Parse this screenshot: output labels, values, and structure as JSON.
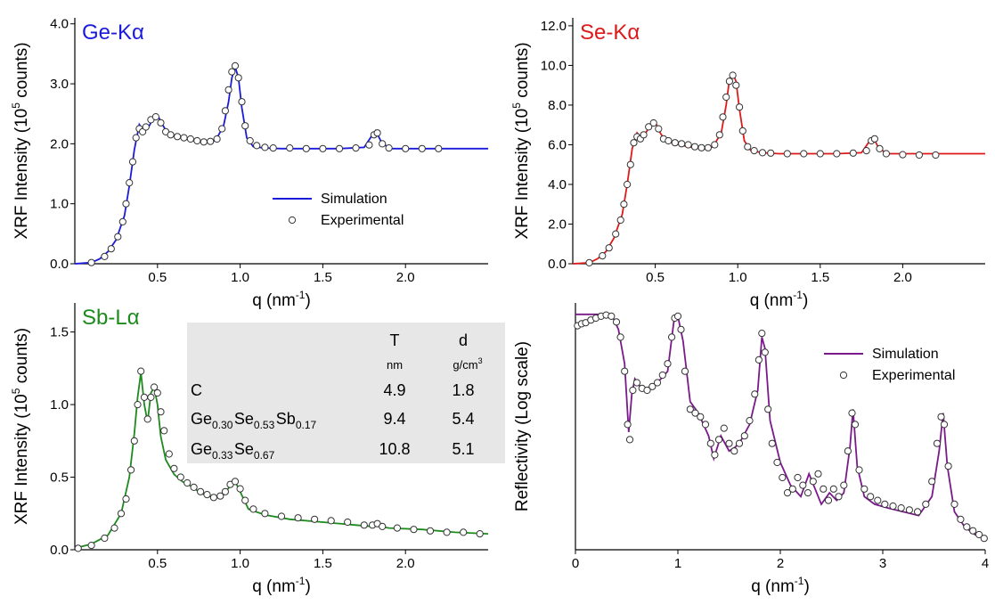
{
  "chart_data": [
    {
      "type": "line",
      "title": "Ge-Kα",
      "title_color": "#1a1adb",
      "xlabel": "q (nm",
      "xlabel_sup": "-1",
      "xlabel_end": ")",
      "ylabel": "XRF Intensity (10",
      "ylabel_sup": "5",
      "ylabel_end": " counts)",
      "xlim": [
        0,
        2.5
      ],
      "ylim": [
        0,
        4.1
      ],
      "xticks": [
        "0.5",
        "1.0",
        "1.5",
        "2.0"
      ],
      "xtick_values": [
        0.5,
        1.0,
        1.5,
        2.0
      ],
      "yticks": [
        "0.0",
        "1.0",
        "2.0",
        "3.0",
        "4.0"
      ],
      "ytick_values": [
        0,
        1,
        2,
        3,
        4
      ],
      "legend": {
        "simulation": "Simulation",
        "experimental": "Experimental",
        "position": "bottom-right"
      },
      "series": [
        {
          "name": "Simulation",
          "color": "#1a1adb",
          "x": [
            0,
            0.1,
            0.15,
            0.2,
            0.25,
            0.3,
            0.33,
            0.36,
            0.39,
            0.42,
            0.45,
            0.48,
            0.5,
            0.53,
            0.56,
            0.6,
            0.65,
            0.7,
            0.75,
            0.8,
            0.85,
            0.9,
            0.93,
            0.95,
            0.97,
            0.99,
            1.01,
            1.04,
            1.08,
            1.15,
            1.25,
            1.4,
            1.6,
            1.75,
            1.8,
            1.82,
            1.85,
            1.9,
            2.0,
            2.2,
            2.5
          ],
          "y": [
            0,
            0.02,
            0.08,
            0.2,
            0.4,
            0.8,
            1.3,
            1.9,
            2.32,
            2.2,
            2.3,
            2.45,
            2.48,
            2.32,
            2.18,
            2.14,
            2.1,
            2.06,
            2.04,
            2.03,
            2.05,
            2.3,
            2.7,
            3.1,
            3.28,
            3.1,
            2.6,
            2.1,
            1.95,
            1.93,
            1.92,
            1.92,
            1.92,
            1.94,
            2.15,
            2.22,
            2.05,
            1.92,
            1.92,
            1.92,
            1.92
          ]
        },
        {
          "name": "Experimental",
          "x": [
            0.1,
            0.18,
            0.22,
            0.26,
            0.29,
            0.31,
            0.33,
            0.35,
            0.37,
            0.39,
            0.41,
            0.43,
            0.46,
            0.49,
            0.52,
            0.55,
            0.58,
            0.62,
            0.66,
            0.7,
            0.74,
            0.78,
            0.82,
            0.86,
            0.89,
            0.91,
            0.93,
            0.95,
            0.97,
            0.99,
            1.01,
            1.03,
            1.06,
            1.1,
            1.15,
            1.2,
            1.3,
            1.4,
            1.5,
            1.6,
            1.7,
            1.78,
            1.81,
            1.83,
            1.86,
            1.9,
            2.0,
            2.1,
            2.2
          ],
          "y": [
            0.02,
            0.12,
            0.25,
            0.45,
            0.7,
            1.0,
            1.35,
            1.7,
            2.1,
            2.25,
            2.2,
            2.28,
            2.4,
            2.45,
            2.35,
            2.2,
            2.15,
            2.12,
            2.1,
            2.08,
            2.05,
            2.03,
            2.04,
            2.08,
            2.25,
            2.55,
            2.9,
            3.2,
            3.3,
            3.1,
            2.7,
            2.3,
            2.05,
            1.97,
            1.94,
            1.93,
            1.93,
            1.92,
            1.92,
            1.92,
            1.93,
            1.98,
            2.15,
            2.18,
            2.0,
            1.93,
            1.92,
            1.92,
            1.92
          ]
        }
      ]
    },
    {
      "type": "line",
      "title": "Se-Kα",
      "title_color": "#dd1a1a",
      "xlabel": "q (nm",
      "xlabel_sup": "-1",
      "xlabel_end": ")",
      "ylabel": "XRF Intensity (10",
      "ylabel_sup": "5",
      "ylabel_end": " counts)",
      "xlim": [
        0,
        2.5
      ],
      "ylim": [
        0,
        12.4
      ],
      "xticks": [
        "0.5",
        "1.0",
        "1.5",
        "2.0"
      ],
      "xtick_values": [
        0.5,
        1.0,
        1.5,
        2.0
      ],
      "yticks": [
        "0.0",
        "2.0",
        "4.0",
        "6.0",
        "8.0",
        "10.0",
        "12.0"
      ],
      "ytick_values": [
        0,
        2,
        4,
        6,
        8,
        10,
        12
      ],
      "series": [
        {
          "name": "Simulation",
          "color": "#dd1a1a",
          "x": [
            0,
            0.1,
            0.15,
            0.2,
            0.25,
            0.3,
            0.33,
            0.36,
            0.39,
            0.42,
            0.45,
            0.48,
            0.5,
            0.53,
            0.56,
            0.6,
            0.65,
            0.7,
            0.75,
            0.8,
            0.85,
            0.9,
            0.93,
            0.95,
            0.97,
            0.99,
            1.01,
            1.04,
            1.08,
            1.15,
            1.25,
            1.4,
            1.6,
            1.75,
            1.8,
            1.82,
            1.85,
            1.9,
            2.0,
            2.2,
            2.5
          ],
          "y": [
            0,
            0.05,
            0.25,
            0.6,
            1.3,
            2.5,
            4.0,
            5.8,
            6.6,
            6.3,
            6.7,
            7.1,
            7.15,
            6.6,
            6.2,
            6.1,
            6.0,
            5.9,
            5.85,
            5.8,
            5.9,
            6.6,
            8.0,
            9.3,
            9.6,
            9.2,
            7.8,
            6.2,
            5.7,
            5.6,
            5.55,
            5.55,
            5.55,
            5.6,
            6.2,
            6.4,
            5.9,
            5.55,
            5.55,
            5.55,
            5.55
          ]
        },
        {
          "name": "Experimental",
          "x": [
            0.1,
            0.18,
            0.22,
            0.26,
            0.29,
            0.31,
            0.33,
            0.35,
            0.37,
            0.39,
            0.41,
            0.43,
            0.46,
            0.49,
            0.52,
            0.55,
            0.58,
            0.62,
            0.66,
            0.7,
            0.74,
            0.78,
            0.82,
            0.86,
            0.89,
            0.91,
            0.93,
            0.95,
            0.97,
            0.99,
            1.01,
            1.03,
            1.06,
            1.1,
            1.15,
            1.2,
            1.3,
            1.4,
            1.5,
            1.6,
            1.7,
            1.78,
            1.81,
            1.83,
            1.86,
            1.9,
            2.0,
            2.1,
            2.2
          ],
          "y": [
            0.05,
            0.4,
            0.8,
            1.5,
            2.2,
            3.0,
            4.0,
            5.0,
            6.1,
            6.4,
            6.3,
            6.5,
            6.9,
            7.1,
            6.8,
            6.3,
            6.2,
            6.1,
            6.05,
            6.0,
            5.9,
            5.85,
            5.85,
            6.0,
            6.5,
            7.4,
            8.4,
            9.2,
            9.5,
            9.0,
            7.9,
            6.7,
            5.9,
            5.7,
            5.6,
            5.58,
            5.55,
            5.55,
            5.55,
            5.55,
            5.58,
            5.7,
            6.2,
            6.3,
            5.8,
            5.55,
            5.5,
            5.48,
            5.48
          ]
        }
      ]
    },
    {
      "type": "line",
      "title": "Sb-Lα",
      "title_color": "#1d8a1d",
      "xlabel": "q (nm",
      "xlabel_sup": "-1",
      "xlabel_end": ")",
      "ylabel": "XRF Intensity (10",
      "ylabel_sup": "5",
      "ylabel_end": " counts)",
      "xlim": [
        0,
        2.5
      ],
      "ylim": [
        0,
        1.7
      ],
      "xticks": [
        "0.5",
        "1.0",
        "1.5",
        "2.0"
      ],
      "xtick_values": [
        0.5,
        1.0,
        1.5,
        2.0
      ],
      "yticks": [
        "0.0",
        "0.5",
        "1.0",
        "1.5"
      ],
      "ytick_values": [
        0,
        0.5,
        1.0,
        1.5
      ],
      "table": {
        "col_headers": [
          "T",
          "d"
        ],
        "col_units": [
          "nm",
          "g/cm"
        ],
        "unit_sup": "3",
        "rows": [
          {
            "parts": [
              [
                "C",
                ""
              ]
            ],
            "T": "4.9",
            "d": "1.8"
          },
          {
            "parts": [
              [
                "Ge",
                "0.30"
              ],
              [
                "Se",
                "0.53"
              ],
              [
                "Sb",
                "0.17"
              ]
            ],
            "T": "9.4",
            "d": "5.4"
          },
          {
            "parts": [
              [
                "Ge",
                "0.33"
              ],
              [
                "Se",
                "0.67"
              ]
            ],
            "T": "10.8",
            "d": "5.1"
          }
        ]
      },
      "series": [
        {
          "name": "Simulation",
          "color": "#1d8a1d",
          "x": [
            0,
            0.1,
            0.2,
            0.28,
            0.33,
            0.36,
            0.38,
            0.4,
            0.42,
            0.44,
            0.46,
            0.48,
            0.5,
            0.52,
            0.55,
            0.6,
            0.65,
            0.7,
            0.75,
            0.8,
            0.85,
            0.9,
            0.94,
            0.97,
            1.0,
            1.05,
            1.15,
            1.3,
            1.5,
            1.7,
            1.8,
            1.82,
            1.85,
            1.9,
            2.1,
            2.3,
            2.5
          ],
          "y": [
            0.01,
            0.04,
            0.1,
            0.25,
            0.5,
            0.8,
            1.05,
            1.22,
            1.0,
            0.88,
            1.08,
            1.12,
            1.0,
            0.78,
            0.62,
            0.52,
            0.47,
            0.44,
            0.4,
            0.37,
            0.36,
            0.38,
            0.44,
            0.47,
            0.4,
            0.28,
            0.24,
            0.21,
            0.19,
            0.17,
            0.16,
            0.18,
            0.16,
            0.15,
            0.14,
            0.12,
            0.11
          ]
        },
        {
          "name": "Experimental",
          "x": [
            0.02,
            0.1,
            0.18,
            0.24,
            0.28,
            0.31,
            0.34,
            0.36,
            0.38,
            0.4,
            0.42,
            0.44,
            0.46,
            0.48,
            0.5,
            0.52,
            0.54,
            0.57,
            0.6,
            0.64,
            0.68,
            0.72,
            0.76,
            0.8,
            0.84,
            0.88,
            0.91,
            0.94,
            0.97,
            1.0,
            1.03,
            1.08,
            1.15,
            1.25,
            1.35,
            1.45,
            1.55,
            1.65,
            1.75,
            1.8,
            1.83,
            1.86,
            1.95,
            2.05,
            2.15,
            2.25,
            2.35,
            2.45
          ],
          "y": [
            0.01,
            0.03,
            0.08,
            0.15,
            0.25,
            0.35,
            0.55,
            0.75,
            1.0,
            1.23,
            1.05,
            0.9,
            1.05,
            1.12,
            1.08,
            0.95,
            0.82,
            0.66,
            0.56,
            0.5,
            0.46,
            0.43,
            0.4,
            0.38,
            0.36,
            0.37,
            0.4,
            0.45,
            0.47,
            0.42,
            0.34,
            0.28,
            0.25,
            0.23,
            0.22,
            0.21,
            0.2,
            0.19,
            0.17,
            0.17,
            0.18,
            0.16,
            0.15,
            0.14,
            0.13,
            0.12,
            0.12,
            0.11
          ]
        }
      ]
    },
    {
      "type": "line",
      "title": "",
      "xlabel": "q (nm",
      "xlabel_sup": "-1",
      "xlabel_end": ")",
      "ylabel": "Reflectivity (Log scale)",
      "yscale": "log",
      "xlim": [
        0,
        4
      ],
      "ylim": [
        -6.2,
        0.3
      ],
      "xticks": [
        "0",
        "1",
        "2",
        "3",
        "4"
      ],
      "xtick_values": [
        0,
        1,
        2,
        3,
        4
      ],
      "yticks": [],
      "legend": {
        "simulation": "Simulation",
        "experimental": "Experimental",
        "position": "top-right"
      },
      "series": [
        {
          "name": "Simulation",
          "color": "#7a1a8a",
          "x": [
            0,
            0.3,
            0.36,
            0.42,
            0.48,
            0.52,
            0.55,
            0.58,
            0.63,
            0.7,
            0.8,
            0.9,
            0.96,
            1.0,
            1.05,
            1.12,
            1.2,
            1.3,
            1.35,
            1.42,
            1.5,
            1.56,
            1.62,
            1.7,
            1.78,
            1.82,
            1.85,
            1.9,
            2.0,
            2.1,
            2.2,
            2.28,
            2.34,
            2.4,
            2.48,
            2.55,
            2.62,
            2.68,
            2.71,
            2.75,
            2.82,
            2.92,
            3.05,
            3.2,
            3.35,
            3.48,
            3.55,
            3.59,
            3.63,
            3.7,
            3.8,
            3.9,
            4.0
          ],
          "y": [
            0,
            0,
            -0.05,
            -0.4,
            -1.3,
            -3.1,
            -2.1,
            -1.7,
            -1.9,
            -1.95,
            -1.8,
            -1.5,
            -0.2,
            -0.05,
            -0.7,
            -2.3,
            -2.6,
            -3.2,
            -3.8,
            -3.2,
            -3.6,
            -3.5,
            -3.3,
            -2.9,
            -2.0,
            -0.6,
            -0.9,
            -2.8,
            -3.9,
            -4.5,
            -4.8,
            -4.2,
            -4.6,
            -5.0,
            -4.7,
            -4.9,
            -4.7,
            -3.5,
            -2.5,
            -4.0,
            -4.8,
            -5.0,
            -5.1,
            -5.2,
            -5.3,
            -4.8,
            -3.6,
            -2.6,
            -4.0,
            -5.2,
            -5.6,
            -5.8,
            -5.9
          ]
        },
        {
          "name": "Experimental",
          "x": [
            0.02,
            0.06,
            0.1,
            0.15,
            0.2,
            0.25,
            0.3,
            0.35,
            0.4,
            0.44,
            0.48,
            0.51,
            0.53,
            0.56,
            0.6,
            0.65,
            0.7,
            0.75,
            0.8,
            0.85,
            0.9,
            0.94,
            0.97,
            1.0,
            1.03,
            1.07,
            1.12,
            1.17,
            1.22,
            1.27,
            1.32,
            1.36,
            1.4,
            1.45,
            1.5,
            1.55,
            1.6,
            1.65,
            1.7,
            1.75,
            1.79,
            1.82,
            1.85,
            1.88,
            1.92,
            1.97,
            2.02,
            2.07,
            2.12,
            2.17,
            2.22,
            2.27,
            2.32,
            2.37,
            2.42,
            2.47,
            2.52,
            2.57,
            2.62,
            2.66,
            2.7,
            2.73,
            2.77,
            2.82,
            2.88,
            2.95,
            3.02,
            3.1,
            3.18,
            3.26,
            3.34,
            3.42,
            3.48,
            3.53,
            3.57,
            3.6,
            3.64,
            3.7,
            3.76,
            3.82,
            3.88,
            3.94,
            3.99
          ],
          "y": [
            -0.3,
            -0.25,
            -0.22,
            -0.15,
            -0.1,
            -0.05,
            -0.02,
            -0.05,
            -0.2,
            -0.6,
            -1.5,
            -2.9,
            -3.3,
            -2.0,
            -1.8,
            -1.95,
            -2.0,
            -1.9,
            -1.8,
            -1.6,
            -1.3,
            -0.6,
            -0.1,
            -0.05,
            -0.4,
            -1.5,
            -2.5,
            -2.6,
            -2.7,
            -2.9,
            -3.4,
            -3.7,
            -3.3,
            -3.0,
            -3.4,
            -3.6,
            -3.4,
            -3.2,
            -2.8,
            -2.1,
            -1.2,
            -0.5,
            -1.0,
            -2.5,
            -3.4,
            -3.9,
            -4.3,
            -4.7,
            -4.6,
            -4.3,
            -4.5,
            -4.7,
            -4.4,
            -4.2,
            -4.6,
            -4.9,
            -4.6,
            -4.8,
            -4.5,
            -3.6,
            -2.6,
            -2.9,
            -4.1,
            -4.6,
            -4.8,
            -4.9,
            -5.0,
            -5.05,
            -5.1,
            -5.15,
            -5.2,
            -5.0,
            -4.4,
            -3.4,
            -2.7,
            -2.9,
            -4.0,
            -5.0,
            -5.4,
            -5.6,
            -5.7,
            -5.8,
            -5.9
          ]
        }
      ]
    }
  ]
}
